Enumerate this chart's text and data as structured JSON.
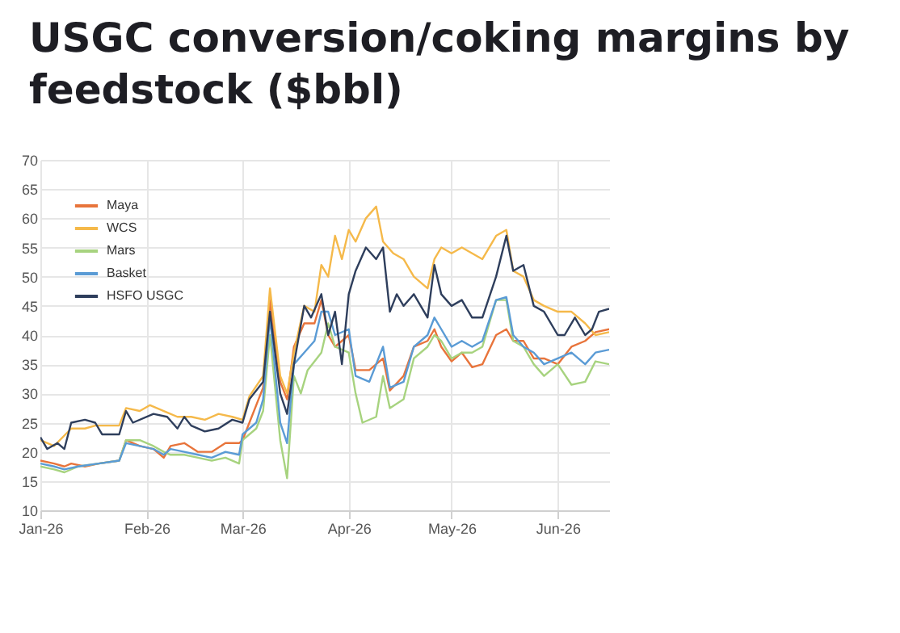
{
  "chart_data": {
    "type": "line",
    "title": "USGC conversion/coking margins by feedstock ($bbl)",
    "xlim": [
      "2026-01-01",
      "2026-06-16"
    ],
    "xticks": [
      {
        "value": "2026-01-01",
        "label": "Jan-26"
      },
      {
        "value": "2026-02-01",
        "label": "Feb-26"
      },
      {
        "value": "2026-03-01",
        "label": "Mar-26"
      },
      {
        "value": "2026-04-01",
        "label": "Apr-26"
      },
      {
        "value": "2026-05-01",
        "label": "May-26"
      },
      {
        "value": "2026-06-01",
        "label": "Jun-26"
      }
    ],
    "ylim": [
      10,
      70
    ],
    "yticks": [
      10,
      15,
      20,
      25,
      30,
      35,
      40,
      45,
      50,
      55,
      60,
      65,
      70
    ],
    "grid": true,
    "legend": "top left",
    "line_style": "solid",
    "series": [
      {
        "name": "Maya",
        "color": "#e8743b",
        "x": [
          "2026-01-01",
          "2026-01-05",
          "2026-01-08",
          "2026-01-10",
          "2026-01-14",
          "2026-01-18",
          "2026-01-24",
          "2026-01-26",
          "2026-01-30",
          "2026-02-03",
          "2026-02-06",
          "2026-02-08",
          "2026-02-12",
          "2026-02-16",
          "2026-02-20",
          "2026-02-24",
          "2026-02-28",
          "2026-03-01",
          "2026-03-03",
          "2026-03-07",
          "2026-03-09",
          "2026-03-12",
          "2026-03-14",
          "2026-03-16",
          "2026-03-19",
          "2026-03-22",
          "2026-03-24",
          "2026-03-26",
          "2026-03-28",
          "2026-04-01",
          "2026-04-03",
          "2026-04-07",
          "2026-04-11",
          "2026-04-13",
          "2026-04-17",
          "2026-04-20",
          "2026-04-24",
          "2026-04-26",
          "2026-04-28",
          "2026-05-01",
          "2026-05-04",
          "2026-05-07",
          "2026-05-10",
          "2026-05-14",
          "2026-05-17",
          "2026-05-19",
          "2026-05-22",
          "2026-05-25",
          "2026-05-28",
          "2026-06-01",
          "2026-06-05",
          "2026-06-09",
          "2026-06-12",
          "2026-06-16"
        ],
        "values": [
          18.5,
          18,
          17.5,
          18,
          17.5,
          18,
          18.5,
          22,
          21,
          20.5,
          19,
          21,
          21.5,
          20,
          20,
          21.5,
          21.5,
          22,
          25,
          31,
          46,
          32,
          29,
          38,
          42,
          42,
          46,
          40,
          38,
          40,
          34,
          34,
          36,
          30.5,
          33,
          38,
          39,
          41,
          38,
          35.5,
          37,
          34.5,
          35,
          40,
          41,
          39,
          39,
          36,
          36,
          35,
          38,
          39,
          40.5,
          41
        ]
      },
      {
        "name": "WCS",
        "color": "#f5b94a",
        "x": [
          "2026-01-01",
          "2026-01-05",
          "2026-01-10",
          "2026-01-14",
          "2026-01-17",
          "2026-01-24",
          "2026-01-26",
          "2026-01-30",
          "2026-02-02",
          "2026-02-06",
          "2026-02-10",
          "2026-02-14",
          "2026-02-18",
          "2026-02-22",
          "2026-02-26",
          "2026-03-01",
          "2026-03-03",
          "2026-03-07",
          "2026-03-09",
          "2026-03-12",
          "2026-03-14",
          "2026-03-16",
          "2026-03-19",
          "2026-03-22",
          "2026-03-24",
          "2026-03-26",
          "2026-03-28",
          "2026-03-30",
          "2026-04-01",
          "2026-04-03",
          "2026-04-06",
          "2026-04-09",
          "2026-04-11",
          "2026-04-14",
          "2026-04-17",
          "2026-04-20",
          "2026-04-24",
          "2026-04-26",
          "2026-04-28",
          "2026-05-01",
          "2026-05-04",
          "2026-05-07",
          "2026-05-10",
          "2026-05-14",
          "2026-05-17",
          "2026-05-19",
          "2026-05-22",
          "2026-05-25",
          "2026-05-28",
          "2026-06-01",
          "2026-06-05",
          "2026-06-09",
          "2026-06-12",
          "2026-06-16"
        ],
        "values": [
          22,
          21,
          24,
          24,
          24.5,
          24.5,
          27.5,
          27,
          28,
          27,
          26,
          26,
          25.5,
          26.5,
          26,
          25.5,
          29.5,
          33,
          48,
          33,
          30,
          37,
          45,
          44,
          52,
          50,
          57,
          53,
          58,
          56,
          60,
          62,
          56,
          54,
          53,
          50,
          48,
          53,
          55,
          54,
          55,
          54,
          53,
          57,
          58,
          51,
          50,
          46,
          45,
          44,
          44,
          42,
          40,
          40.5
        ]
      },
      {
        "name": "Mars",
        "color": "#a7d37f",
        "x": [
          "2026-01-01",
          "2026-01-05",
          "2026-01-08",
          "2026-01-12",
          "2026-01-18",
          "2026-01-24",
          "2026-01-26",
          "2026-01-30",
          "2026-02-03",
          "2026-02-06",
          "2026-02-08",
          "2026-02-12",
          "2026-02-16",
          "2026-02-20",
          "2026-02-24",
          "2026-02-28",
          "2026-03-01",
          "2026-03-05",
          "2026-03-07",
          "2026-03-09",
          "2026-03-12",
          "2026-03-14",
          "2026-03-16",
          "2026-03-18",
          "2026-03-20",
          "2026-03-24",
          "2026-03-26",
          "2026-03-28",
          "2026-04-01",
          "2026-04-03",
          "2026-04-05",
          "2026-04-09",
          "2026-04-11",
          "2026-04-13",
          "2026-04-17",
          "2026-04-20",
          "2026-04-24",
          "2026-04-26",
          "2026-04-28",
          "2026-05-01",
          "2026-05-04",
          "2026-05-07",
          "2026-05-10",
          "2026-05-14",
          "2026-05-17",
          "2026-05-19",
          "2026-05-22",
          "2026-05-25",
          "2026-05-28",
          "2026-06-01",
          "2026-06-05",
          "2026-06-09",
          "2026-06-12",
          "2026-06-16"
        ],
        "values": [
          17.5,
          17,
          16.5,
          17.5,
          18,
          18.5,
          22,
          22,
          21,
          20,
          19.5,
          19.5,
          19,
          18.5,
          19,
          18,
          22,
          24,
          27,
          40,
          22,
          15.5,
          33,
          30,
          34,
          37,
          42,
          38,
          37,
          30,
          25,
          26,
          33,
          27.5,
          29,
          36,
          38,
          40,
          39,
          36,
          37,
          37,
          38,
          46,
          46,
          39,
          38,
          35,
          33,
          35,
          31.5,
          32,
          35.5,
          35
        ]
      },
      {
        "name": "Basket",
        "color": "#5a9bd5",
        "x": [
          "2026-01-01",
          "2026-01-05",
          "2026-01-08",
          "2026-01-12",
          "2026-01-18",
          "2026-01-24",
          "2026-01-26",
          "2026-01-30",
          "2026-02-03",
          "2026-02-06",
          "2026-02-08",
          "2026-02-12",
          "2026-02-16",
          "2026-02-20",
          "2026-02-24",
          "2026-02-28",
          "2026-03-01",
          "2026-03-05",
          "2026-03-07",
          "2026-03-09",
          "2026-03-12",
          "2026-03-14",
          "2026-03-16",
          "2026-03-19",
          "2026-03-22",
          "2026-03-24",
          "2026-03-26",
          "2026-03-28",
          "2026-04-01",
          "2026-04-03",
          "2026-04-07",
          "2026-04-11",
          "2026-04-13",
          "2026-04-17",
          "2026-04-20",
          "2026-04-24",
          "2026-04-26",
          "2026-04-28",
          "2026-05-01",
          "2026-05-04",
          "2026-05-07",
          "2026-05-10",
          "2026-05-14",
          "2026-05-17",
          "2026-05-19",
          "2026-05-22",
          "2026-05-25",
          "2026-05-28",
          "2026-06-01",
          "2026-06-05",
          "2026-06-09",
          "2026-06-12",
          "2026-06-16"
        ],
        "values": [
          18,
          17.5,
          17,
          17.5,
          18,
          18.5,
          21.5,
          21,
          20.5,
          19.5,
          20.5,
          20,
          19.5,
          19,
          20,
          19.5,
          23,
          25,
          29,
          43,
          25,
          21.5,
          35,
          37,
          39,
          44,
          44,
          40,
          41,
          33,
          32,
          38,
          31,
          32,
          38,
          40,
          43,
          41,
          38,
          39,
          38,
          39,
          46,
          46.5,
          40,
          38,
          37,
          35,
          36,
          37,
          35,
          37,
          37.5
        ]
      },
      {
        "name": "HSFO USGC",
        "color": "#2e3e5c",
        "x": [
          "2026-01-01",
          "2026-01-03",
          "2026-01-06",
          "2026-01-08",
          "2026-01-10",
          "2026-01-14",
          "2026-01-17",
          "2026-01-19",
          "2026-01-24",
          "2026-01-26",
          "2026-01-28",
          "2026-02-03",
          "2026-02-07",
          "2026-02-10",
          "2026-02-12",
          "2026-02-14",
          "2026-02-18",
          "2026-02-22",
          "2026-02-26",
          "2026-03-01",
          "2026-03-03",
          "2026-03-07",
          "2026-03-09",
          "2026-03-12",
          "2026-03-14",
          "2026-03-16",
          "2026-03-19",
          "2026-03-21",
          "2026-03-24",
          "2026-03-26",
          "2026-03-28",
          "2026-03-30",
          "2026-04-01",
          "2026-04-03",
          "2026-04-06",
          "2026-04-09",
          "2026-04-11",
          "2026-04-13",
          "2026-04-15",
          "2026-04-17",
          "2026-04-20",
          "2026-04-24",
          "2026-04-26",
          "2026-04-28",
          "2026-05-01",
          "2026-05-04",
          "2026-05-07",
          "2026-05-10",
          "2026-05-14",
          "2026-05-17",
          "2026-05-19",
          "2026-05-22",
          "2026-05-25",
          "2026-05-28",
          "2026-06-01",
          "2026-06-03",
          "2026-06-06",
          "2026-06-09",
          "2026-06-11",
          "2026-06-13",
          "2026-06-16"
        ],
        "values": [
          22.5,
          20.5,
          21.5,
          20.5,
          25,
          25.5,
          25,
          23,
          23,
          27,
          25,
          26.5,
          26,
          24,
          26,
          24.5,
          23.5,
          24,
          25.5,
          25,
          29,
          32,
          44,
          30,
          26.5,
          35,
          45,
          43,
          47,
          40,
          44,
          35,
          47,
          51,
          55,
          53,
          55,
          44,
          47,
          45,
          47,
          43,
          52,
          47,
          45,
          46,
          43,
          43,
          50,
          57,
          51,
          52,
          45,
          44,
          40,
          40,
          43,
          40,
          41,
          44,
          44.5
        ]
      }
    ]
  }
}
